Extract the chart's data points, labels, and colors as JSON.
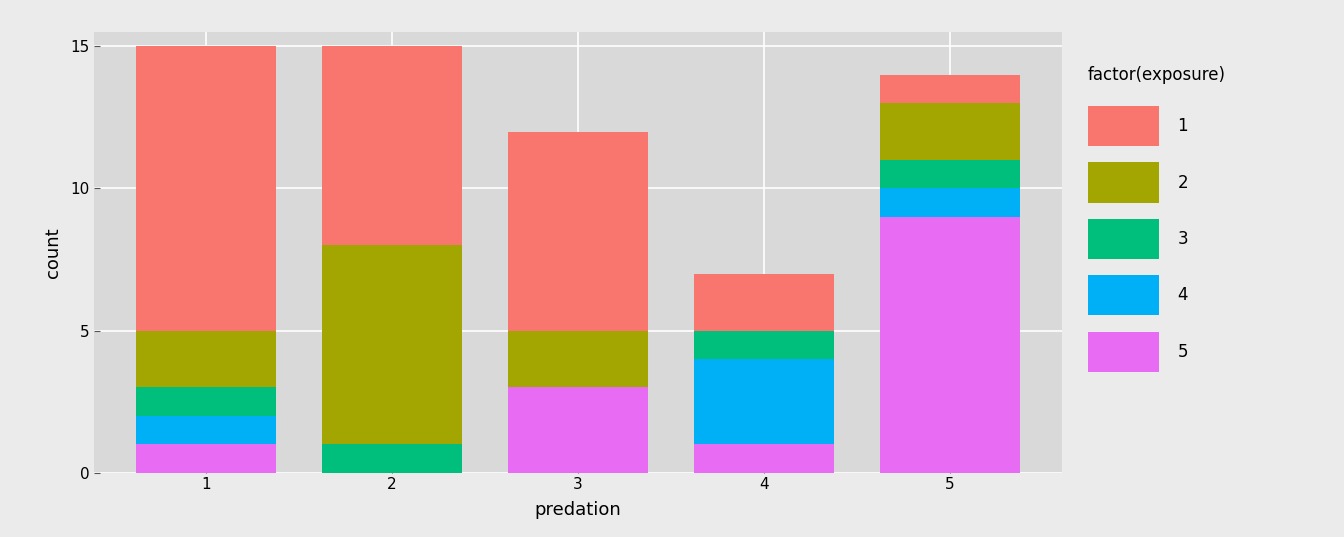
{
  "categories": [
    "1",
    "2",
    "3",
    "4",
    "5"
  ],
  "xlabel": "predation",
  "ylabel": "count",
  "legend_title": "factor(exposure)",
  "legend_labels": [
    "1",
    "2",
    "3",
    "4",
    "5"
  ],
  "colors": {
    "1": "#F8766D",
    "2": "#A3A500",
    "3": "#00BF7D",
    "4": "#00B0F6",
    "5": "#E76BF3"
  },
  "stacked_data": {
    "5": [
      1,
      0,
      3,
      1,
      9
    ],
    "4": [
      1,
      0,
      0,
      3,
      1
    ],
    "3": [
      1,
      1,
      0,
      1,
      1
    ],
    "2": [
      2,
      7,
      2,
      0,
      2
    ],
    "1": [
      10,
      7,
      7,
      2,
      1
    ]
  },
  "ylim": [
    0,
    15.5
  ],
  "yticks": [
    0,
    5,
    10,
    15
  ],
  "ytick_labels": [
    "0",
    "5",
    "10",
    "15"
  ],
  "background_color": "#EBEBEB",
  "panel_background": "#D9D9D9",
  "grid_color": "#FFFFFF",
  "bar_width": 0.75
}
